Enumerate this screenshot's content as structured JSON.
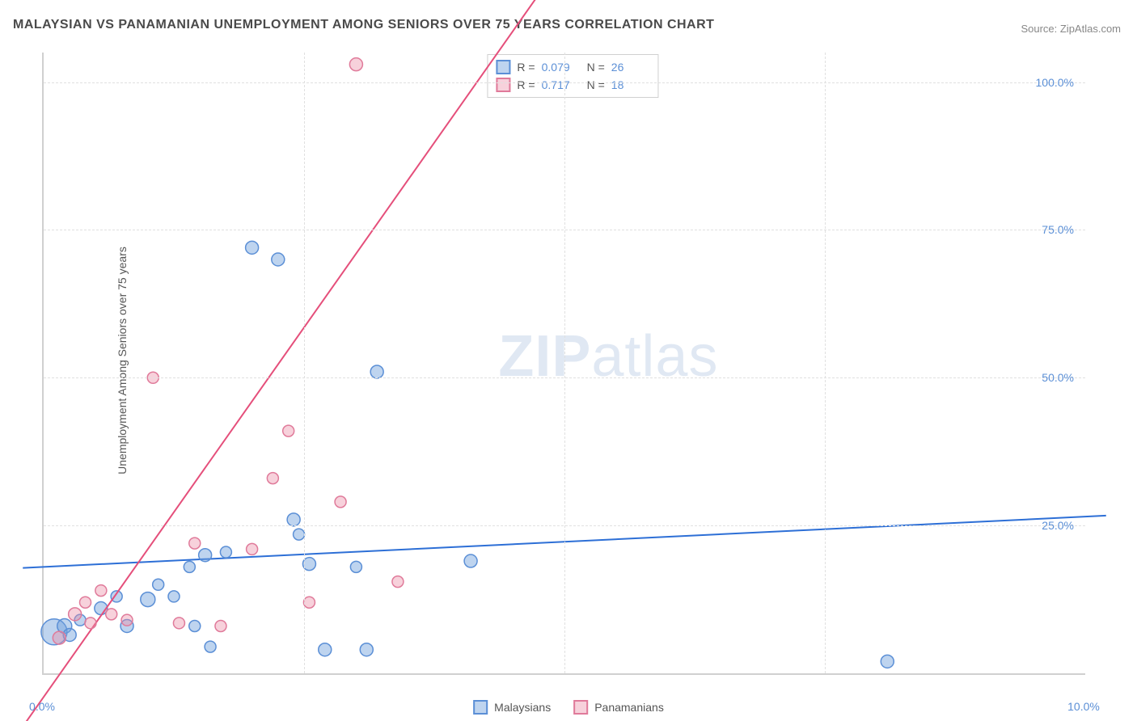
{
  "title": "MALAYSIAN VS PANAMANIAN UNEMPLOYMENT AMONG SENIORS OVER 75 YEARS CORRELATION CHART",
  "source": "Source: ZipAtlas.com",
  "y_axis_label": "Unemployment Among Seniors over 75 years",
  "watermark": {
    "bold": "ZIP",
    "rest": "atlas"
  },
  "chart": {
    "type": "scatter",
    "background_color": "#ffffff",
    "grid_color": "#e0e0e0",
    "grid_dash": "4,4",
    "axis_color": "#d0d0d0",
    "tick_label_color": "#5b8fd6",
    "tick_fontsize": 14,
    "title_fontsize": 16,
    "title_color": "#4a4a4a",
    "xlim": [
      0,
      10
    ],
    "ylim": [
      0,
      105
    ],
    "x_ticks": [
      {
        "value": 0,
        "label": "0.0%"
      },
      {
        "value": 10,
        "label": "10.0%"
      }
    ],
    "x_gridlines": [
      2.5,
      5.0,
      7.5
    ],
    "y_ticks": [
      {
        "value": 25,
        "label": "25.0%"
      },
      {
        "value": 50,
        "label": "50.0%"
      },
      {
        "value": 75,
        "label": "75.0%"
      },
      {
        "value": 100,
        "label": "100.0%"
      }
    ],
    "series": [
      {
        "name": "Malaysians",
        "color_fill": "rgba(110,160,220,0.45)",
        "color_stroke": "#5b8fd6",
        "marker": "circle",
        "marker_stroke_width": 1.5,
        "points": [
          {
            "x": 0.1,
            "y": 7.0,
            "r": 16
          },
          {
            "x": 0.2,
            "y": 8.0,
            "r": 9
          },
          {
            "x": 0.25,
            "y": 6.5,
            "r": 8
          },
          {
            "x": 0.35,
            "y": 9.0,
            "r": 7
          },
          {
            "x": 0.55,
            "y": 11.0,
            "r": 8
          },
          {
            "x": 0.7,
            "y": 13.0,
            "r": 7
          },
          {
            "x": 0.8,
            "y": 8.0,
            "r": 8
          },
          {
            "x": 1.0,
            "y": 12.5,
            "r": 9
          },
          {
            "x": 1.1,
            "y": 15.0,
            "r": 7
          },
          {
            "x": 1.25,
            "y": 13.0,
            "r": 7
          },
          {
            "x": 1.4,
            "y": 18.0,
            "r": 7
          },
          {
            "x": 1.45,
            "y": 8.0,
            "r": 7
          },
          {
            "x": 1.55,
            "y": 20.0,
            "r": 8
          },
          {
            "x": 1.6,
            "y": 4.5,
            "r": 7
          },
          {
            "x": 1.75,
            "y": 20.5,
            "r": 7
          },
          {
            "x": 2.0,
            "y": 72.0,
            "r": 8
          },
          {
            "x": 2.25,
            "y": 70.0,
            "r": 8
          },
          {
            "x": 2.4,
            "y": 26.0,
            "r": 8
          },
          {
            "x": 2.45,
            "y": 23.5,
            "r": 7
          },
          {
            "x": 2.55,
            "y": 18.5,
            "r": 8
          },
          {
            "x": 2.7,
            "y": 4.0,
            "r": 8
          },
          {
            "x": 3.0,
            "y": 18.0,
            "r": 7
          },
          {
            "x": 3.1,
            "y": 4.0,
            "r": 8
          },
          {
            "x": 3.2,
            "y": 51.0,
            "r": 8
          },
          {
            "x": 4.1,
            "y": 19.0,
            "r": 8
          },
          {
            "x": 8.1,
            "y": 2.0,
            "r": 8
          }
        ],
        "trend": {
          "slope": 0.85,
          "intercept": 18.0,
          "stroke": "#2d6fd6",
          "stroke_width": 2
        },
        "R": "0.079",
        "N": "26"
      },
      {
        "name": "Panamanians",
        "color_fill": "rgba(235,140,165,0.40)",
        "color_stroke": "#e07a9a",
        "marker": "circle",
        "marker_stroke_width": 1.5,
        "points": [
          {
            "x": 0.15,
            "y": 6.0,
            "r": 8
          },
          {
            "x": 0.3,
            "y": 10.0,
            "r": 8
          },
          {
            "x": 0.4,
            "y": 12.0,
            "r": 7
          },
          {
            "x": 0.45,
            "y": 8.5,
            "r": 7
          },
          {
            "x": 0.55,
            "y": 14.0,
            "r": 7
          },
          {
            "x": 0.65,
            "y": 10.0,
            "r": 7
          },
          {
            "x": 0.8,
            "y": 9.0,
            "r": 7
          },
          {
            "x": 1.05,
            "y": 50.0,
            "r": 7
          },
          {
            "x": 1.3,
            "y": 8.5,
            "r": 7
          },
          {
            "x": 1.45,
            "y": 22.0,
            "r": 7
          },
          {
            "x": 1.7,
            "y": 8.0,
            "r": 7
          },
          {
            "x": 2.0,
            "y": 21.0,
            "r": 7
          },
          {
            "x": 2.2,
            "y": 33.0,
            "r": 7
          },
          {
            "x": 2.35,
            "y": 41.0,
            "r": 7
          },
          {
            "x": 2.55,
            "y": 12.0,
            "r": 7
          },
          {
            "x": 2.85,
            "y": 29.0,
            "r": 7
          },
          {
            "x": 3.0,
            "y": 103.0,
            "r": 8
          },
          {
            "x": 3.4,
            "y": 15.5,
            "r": 7
          }
        ],
        "trend": {
          "slope": 25.0,
          "intercept": -4.0,
          "stroke": "#e54f7b",
          "stroke_width": 2
        },
        "R": "0.717",
        "N": "18"
      }
    ],
    "stats_box": {
      "R_label": "R =",
      "N_label": "N ="
    },
    "bottom_legend": [
      {
        "label": "Malaysians",
        "fill": "rgba(110,160,220,0.45)",
        "stroke": "#5b8fd6"
      },
      {
        "label": "Panamanians",
        "fill": "rgba(235,140,165,0.40)",
        "stroke": "#e07a9a"
      }
    ]
  }
}
